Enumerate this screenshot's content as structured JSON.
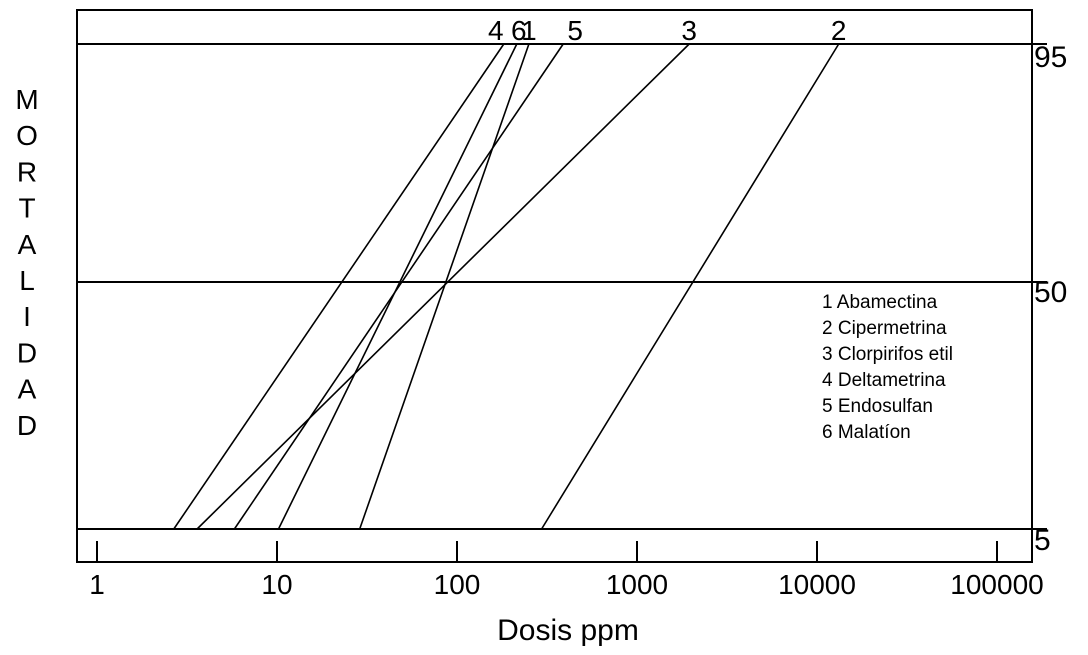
{
  "chart_data": {
    "type": "line",
    "xlabel": "Dosis ppm",
    "ylabel": "MORTALIDAD",
    "x_scale": "log",
    "x_ticks": [
      1,
      10,
      100,
      1000,
      10000,
      100000
    ],
    "x_tick_labels": [
      "1",
      "10",
      "100",
      "1000",
      "10000",
      "100000"
    ],
    "y_ticks": [
      5,
      50,
      95
    ],
    "y_tick_labels": [
      "5",
      "50",
      "95"
    ],
    "grid_lines_y": [
      5,
      50,
      95
    ],
    "series": [
      {
        "label": "1",
        "points": [
          [
            28.8,
            5
          ],
          [
            251,
            95
          ]
        ]
      },
      {
        "label": "2",
        "points": [
          [
            295,
            5
          ],
          [
            13200,
            95
          ]
        ]
      },
      {
        "label": "3",
        "points": [
          [
            3.6,
            5
          ],
          [
            1950,
            95
          ]
        ]
      },
      {
        "label": "4",
        "points": [
          [
            2.67,
            5
          ],
          [
            182,
            95
          ]
        ]
      },
      {
        "label": "5",
        "points": [
          [
            5.8,
            5
          ],
          [
            389,
            95
          ]
        ]
      },
      {
        "label": "6",
        "points": [
          [
            10.2,
            5
          ],
          [
            215,
            95
          ]
        ]
      }
    ],
    "legend": {
      "position": "right",
      "entries": [
        "1 Abamectina",
        "2 Cipermetrina",
        "3 Clorpirifos etil",
        "4 Deltametrina",
        "5 Endosulfan",
        "6 Malatíon"
      ]
    }
  }
}
